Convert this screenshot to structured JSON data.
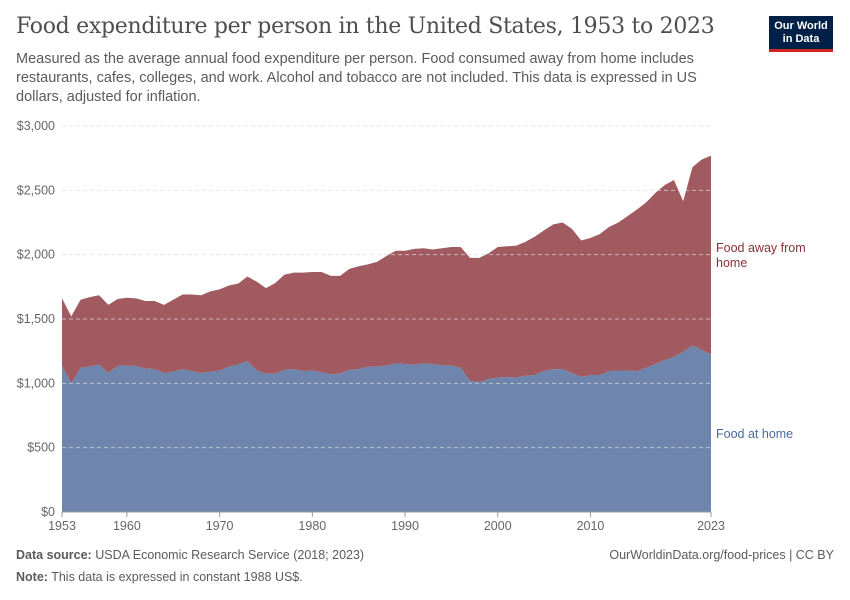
{
  "header": {
    "title": "Food expenditure per person in the United States, 1953 to 2023",
    "subtitle": "Measured as the average annual food expenditure per person. Food consumed away from home includes restaurants, cafes, colleges, and work. Alcohol and tobacco are not included. This data is expressed in US dollars, adjusted for inflation.",
    "logo": "Our World in Data"
  },
  "footer": {
    "source_label": "Data source:",
    "source": "USDA Economic Research Service (2018; 2023)",
    "note_label": "Note:",
    "note": "This data is expressed in constant 1988 US$.",
    "link": "OurWorldinData.org/food-prices | CC BY"
  },
  "chart_data": {
    "type": "area",
    "stacked": true,
    "grid": true,
    "legend": "right (inline labels)",
    "ylim": [
      0,
      3000
    ],
    "y_ticks": [
      "$0",
      "$500",
      "$1,000",
      "$1,500",
      "$2,000",
      "$2,500",
      "$3,000"
    ],
    "x_ticks": [
      "1953",
      "1960",
      "1970",
      "1980",
      "1990",
      "2000",
      "2010",
      "2023"
    ],
    "x_start": 1953,
    "series": [
      {
        "name": "Food at home",
        "color": "#6e86ad",
        "label_color": "#4c6a9c",
        "values": [
          1140,
          1000,
          1120,
          1130,
          1145,
          1080,
          1135,
          1140,
          1135,
          1115,
          1110,
          1080,
          1090,
          1110,
          1095,
          1080,
          1090,
          1100,
          1130,
          1145,
          1175,
          1100,
          1075,
          1075,
          1105,
          1110,
          1095,
          1100,
          1085,
          1070,
          1075,
          1105,
          1110,
          1130,
          1130,
          1140,
          1155,
          1150,
          1145,
          1155,
          1150,
          1140,
          1140,
          1120,
          1020,
          1010,
          1035,
          1045,
          1050,
          1045,
          1060,
          1065,
          1095,
          1110,
          1110,
          1080,
          1050,
          1065,
          1065,
          1095,
          1100,
          1100,
          1095,
          1120,
          1150,
          1180,
          1205,
          1245,
          1295,
          1260,
          1225
        ]
      },
      {
        "name": "Food away from home",
        "color": "#a05a60",
        "label_color": "#883039",
        "values": [
          520,
          520,
          530,
          540,
          540,
          530,
          520,
          525,
          525,
          525,
          530,
          530,
          560,
          580,
          595,
          605,
          625,
          630,
          630,
          630,
          655,
          690,
          665,
          705,
          740,
          750,
          765,
          765,
          780,
          765,
          760,
          785,
          800,
          795,
          815,
          850,
          875,
          880,
          900,
          895,
          890,
          910,
          920,
          940,
          955,
          965,
          975,
          1015,
          1015,
          1025,
          1040,
          1075,
          1095,
          1125,
          1140,
          1120,
          1060,
          1065,
          1095,
          1120,
          1150,
          1200,
          1255,
          1285,
          1330,
          1360,
          1375,
          1170,
          1385,
          1480,
          1545
        ]
      }
    ]
  }
}
